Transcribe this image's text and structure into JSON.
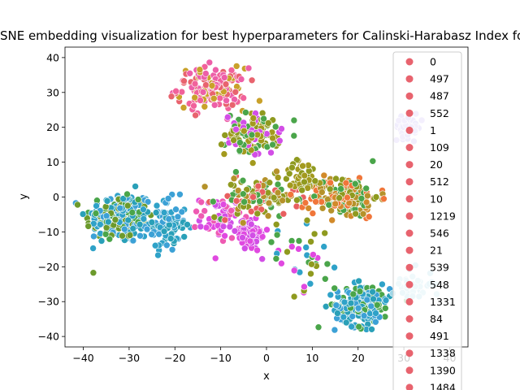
{
  "chart_data": {
    "type": "scatter",
    "title": "t-SNE embedding visualization for best hyperparameters for Calinski-Harabasz Index for",
    "xlabel": "x",
    "ylabel": "y",
    "xlim": [
      -44,
      44
    ],
    "ylim": [
      -43,
      43
    ],
    "xticks": [
      -40,
      -30,
      -20,
      -10,
      0,
      10,
      20,
      30,
      40
    ],
    "yticks": [
      -40,
      -30,
      -20,
      -10,
      0,
      10,
      20,
      30,
      40
    ],
    "grid": false,
    "legend_position": "right",
    "legend": [
      "0",
      "497",
      "487",
      "552",
      "1",
      "109",
      "20",
      "512",
      "10",
      "1219",
      "546",
      "21",
      "539",
      "548",
      "1331",
      "84",
      "491",
      "1338",
      "1390",
      "1484"
    ],
    "legend_marker_color": "#e8636e",
    "clusters": [
      {
        "center": [
          -32,
          -6
        ],
        "spread": [
          5,
          5
        ],
        "n": 230,
        "colors": [
          "#2fa2c8",
          "#2aa0b8",
          "#3ca1d6",
          "#4aa54a",
          "#6c9a2c"
        ]
      },
      {
        "center": [
          -22,
          -8
        ],
        "spread": [
          3,
          5
        ],
        "n": 90,
        "colors": [
          "#2fa2c8",
          "#3ca1d6",
          "#2aa0b8"
        ]
      },
      {
        "center": [
          -12,
          31
        ],
        "spread": [
          5,
          4
        ],
        "n": 160,
        "colors": [
          "#f1629b",
          "#e8636e",
          "#ed5fa8",
          "#c9a12a"
        ]
      },
      {
        "center": [
          -3,
          18
        ],
        "spread": [
          4,
          4
        ],
        "n": 140,
        "colors": [
          "#d24ee6",
          "#8f9a1f",
          "#a39a1e",
          "#4aa54a"
        ]
      },
      {
        "center": [
          -10,
          -6
        ],
        "spread": [
          3,
          4
        ],
        "n": 60,
        "colors": [
          "#e049e0",
          "#d24ee6",
          "#ee5ab2"
        ]
      },
      {
        "center": [
          -4,
          -11
        ],
        "spread": [
          3,
          3
        ],
        "n": 60,
        "colors": [
          "#e049e0",
          "#d24ee6"
        ]
      },
      {
        "center": [
          -2,
          0
        ],
        "spread": [
          6,
          4
        ],
        "n": 110,
        "colors": [
          "#b5922a",
          "#8f9a1f",
          "#e85f5f",
          "#4aa54a"
        ]
      },
      {
        "center": [
          17,
          0
        ],
        "spread": [
          5,
          4
        ],
        "n": 190,
        "colors": [
          "#8f9a1f",
          "#b5922a",
          "#d28a2a",
          "#4aa54a",
          "#f0763a"
        ]
      },
      {
        "center": [
          8,
          6
        ],
        "spread": [
          3,
          3
        ],
        "n": 40,
        "colors": [
          "#8f9a1f",
          "#a39a1e"
        ]
      },
      {
        "center": [
          21,
          -31
        ],
        "spread": [
          4,
          4
        ],
        "n": 200,
        "colors": [
          "#2fa2c8",
          "#3ca1d6",
          "#2aa0b8",
          "#4aa54a"
        ]
      },
      {
        "center": [
          31,
          20
        ],
        "spread": [
          2,
          2
        ],
        "n": 50,
        "colors": [
          "#b3a4f2",
          "#c0b0f5"
        ]
      },
      {
        "center": [
          32,
          -25
        ],
        "spread": [
          3,
          3
        ],
        "n": 40,
        "colors": [
          "#9fd6e6",
          "#b0e0ec"
        ]
      },
      {
        "center": [
          8,
          -18
        ],
        "spread": [
          6,
          6
        ],
        "n": 40,
        "colors": [
          "#2fa2c8",
          "#8f9a1f",
          "#e049e0",
          "#4aa54a"
        ]
      }
    ]
  }
}
